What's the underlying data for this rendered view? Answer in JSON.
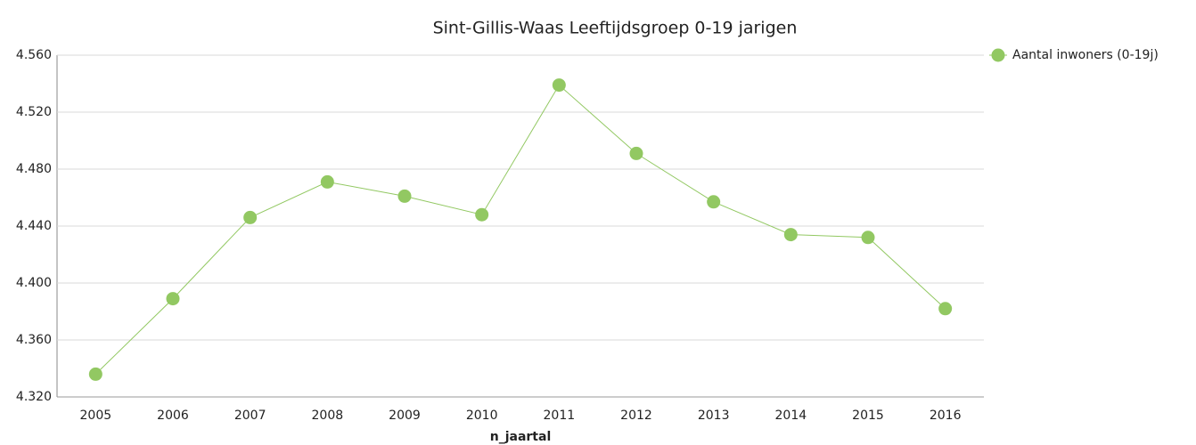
{
  "chart_data": {
    "type": "line",
    "title": "Sint-Gillis-Waas  Leeftijdsgroep 0-19 jarigen",
    "x_label": "n_jaartal",
    "categories": [
      "2005",
      "2006",
      "2007",
      "2008",
      "2009",
      "2010",
      "2011",
      "2012",
      "2013",
      "2014",
      "2015",
      "2016"
    ],
    "series": [
      {
        "name": "Aantal inwoners (0-19j)",
        "color": "#92c862",
        "values": [
          4336,
          4389,
          4446,
          4471,
          4461,
          4448,
          4539,
          4491,
          4457,
          4434,
          4432,
          4382
        ]
      }
    ],
    "ylim": [
      4320,
      4560
    ],
    "yticks": [
      {
        "value": 4320,
        "label": "4.320"
      },
      {
        "value": 4360,
        "label": "4.360"
      },
      {
        "value": 4400,
        "label": "4.400"
      },
      {
        "value": 4440,
        "label": "4.440"
      },
      {
        "value": 4480,
        "label": "4.480"
      },
      {
        "value": 4520,
        "label": "4.520"
      },
      {
        "value": 4560,
        "label": "4.560"
      }
    ],
    "grid": true,
    "legend": "right"
  }
}
